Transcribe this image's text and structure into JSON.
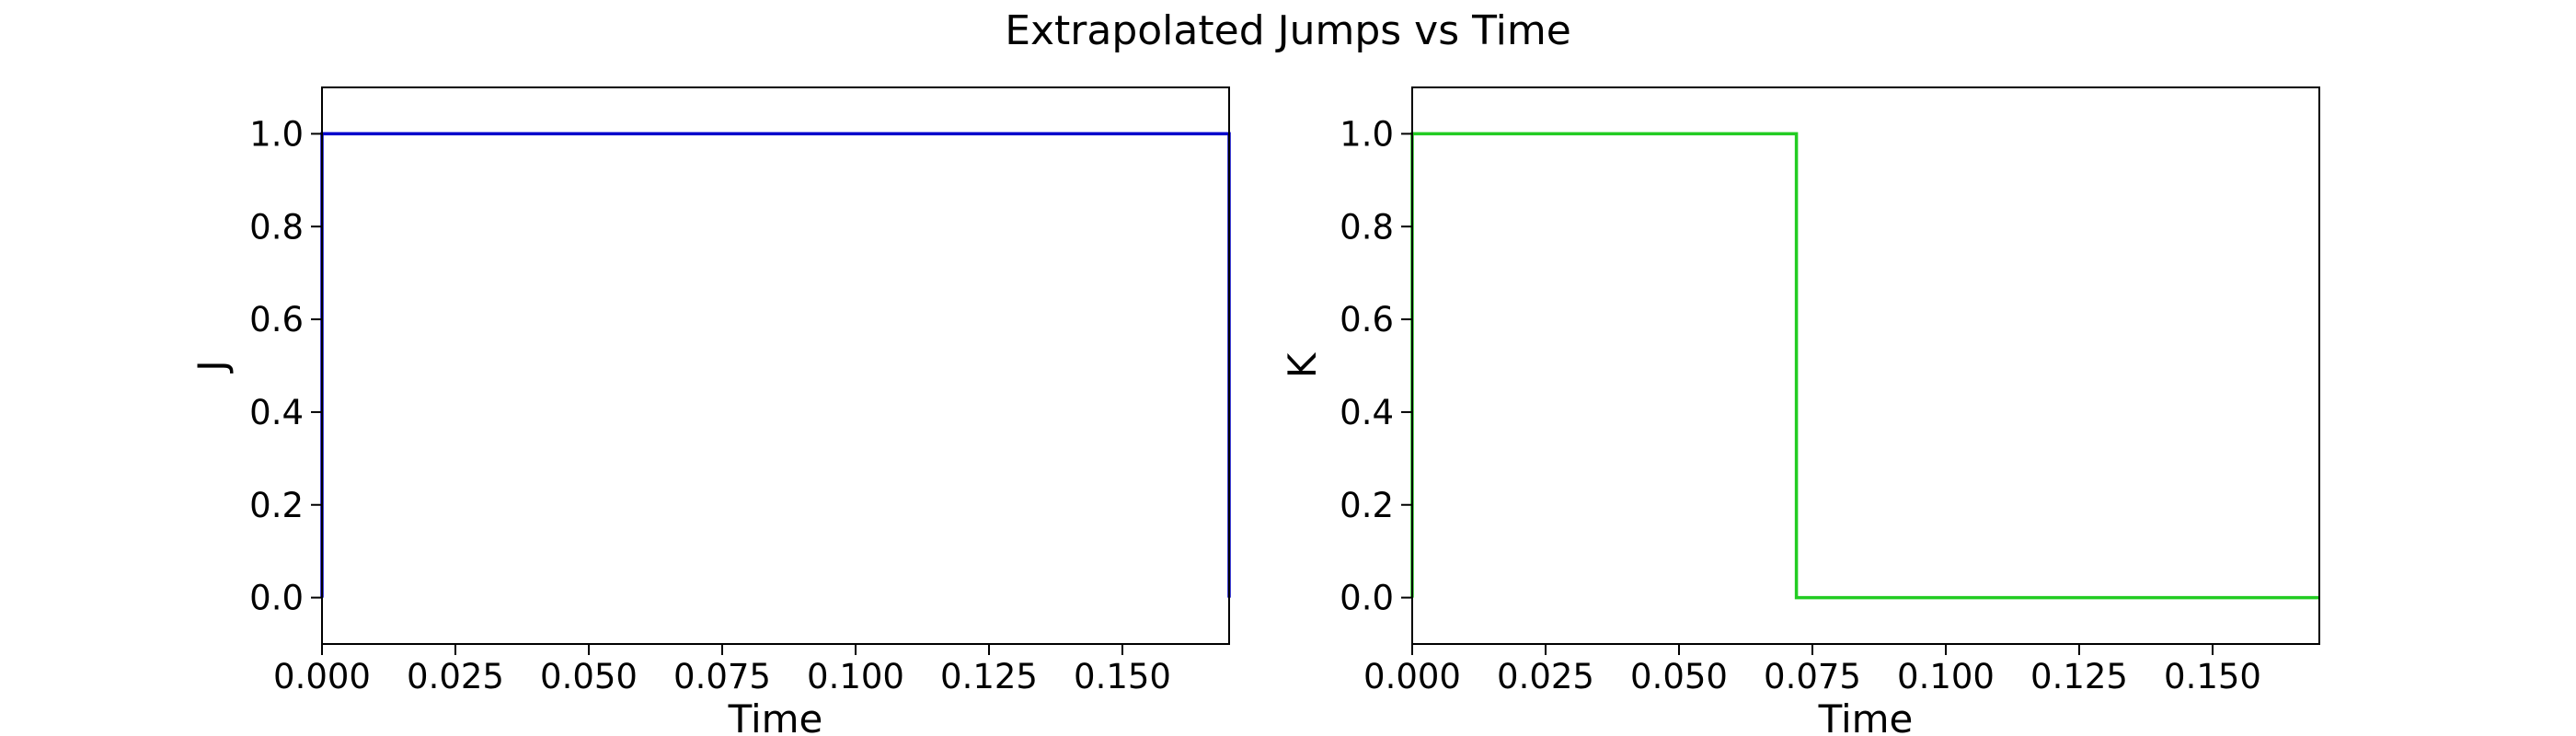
{
  "suptitle": "Extrapolated Jumps vs Time",
  "chart_data": [
    {
      "type": "line",
      "title": "",
      "xlabel": "Time",
      "ylabel": "J",
      "xlim": [
        0.0,
        0.17
      ],
      "ylim": [
        -0.1,
        1.1
      ],
      "xticks": [
        0.0,
        0.025,
        0.05,
        0.075,
        0.1,
        0.125,
        0.15
      ],
      "xtick_labels": [
        "0.000",
        "0.025",
        "0.050",
        "0.075",
        "0.100",
        "0.125",
        "0.150"
      ],
      "yticks": [
        0.0,
        0.2,
        0.4,
        0.6,
        0.8,
        1.0
      ],
      "ytick_labels": [
        "0.0",
        "0.2",
        "0.4",
        "0.6",
        "0.8",
        "1.0"
      ],
      "grid": false,
      "series": [
        {
          "color": "#0000cc",
          "step": true,
          "x": [
            0.0,
            0.0,
            0.17,
            0.17
          ],
          "y": [
            0.0,
            1.0,
            1.0,
            0.0
          ]
        }
      ]
    },
    {
      "type": "line",
      "title": "",
      "xlabel": "Time",
      "ylabel": "K",
      "xlim": [
        0.0,
        0.17
      ],
      "ylim": [
        -0.1,
        1.1
      ],
      "xticks": [
        0.0,
        0.025,
        0.05,
        0.075,
        0.1,
        0.125,
        0.15
      ],
      "xtick_labels": [
        "0.000",
        "0.025",
        "0.050",
        "0.075",
        "0.100",
        "0.125",
        "0.150"
      ],
      "yticks": [
        0.0,
        0.2,
        0.4,
        0.6,
        0.8,
        1.0
      ],
      "ytick_labels": [
        "0.0",
        "0.2",
        "0.4",
        "0.6",
        "0.8",
        "1.0"
      ],
      "grid": false,
      "series": [
        {
          "color": "#22cc22",
          "step": true,
          "x": [
            0.0,
            0.0,
            0.072,
            0.072,
            0.17
          ],
          "y": [
            0.0,
            1.0,
            1.0,
            0.0,
            0.0
          ]
        }
      ]
    }
  ]
}
